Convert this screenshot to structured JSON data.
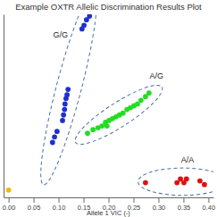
{
  "chart_data": {
    "type": "scatter",
    "title": "Example OXTR Allelic Discrimination Results Plot",
    "x_label": "Allele 1 VIC (-)",
    "xlim": [
      -0.01,
      0.41
    ],
    "xticks": [
      {
        "value": 0,
        "label": "0.00"
      },
      {
        "value": 0.05,
        "label": "0.05"
      },
      {
        "value": 0.1,
        "label": "0.10"
      },
      {
        "value": 0.15,
        "label": "0.15"
      },
      {
        "value": 0.2,
        "label": "0.20"
      },
      {
        "value": 0.25,
        "label": "0.25"
      },
      {
        "value": 0.3,
        "label": "0.30"
      },
      {
        "value": 0.35,
        "label": "0.35"
      },
      {
        "value": 0.4,
        "label": "0.40"
      }
    ],
    "ylim": [
      0,
      1
    ],
    "tick_labels": "x",
    "grid": false,
    "marker": "circle",
    "series": [
      {
        "color": "#1f2fd0",
        "x": [
          0.162,
          0.156,
          0.151,
          0.147,
          0.119,
          0.117,
          0.115,
          0.113,
          0.112,
          0.11,
          0.108,
          0.097,
          0.092,
          0.088
        ],
        "values": [
          0.99,
          0.97,
          0.94,
          0.92,
          0.59,
          0.56,
          0.54,
          0.51,
          0.48,
          0.45,
          0.42,
          0.36,
          0.33,
          0.3
        ]
      },
      {
        "color": "#22dd22",
        "x": [
          0.158,
          0.169,
          0.179,
          0.187,
          0.194,
          0.201,
          0.208,
          0.215,
          0.222,
          0.229,
          0.237,
          0.244,
          0.251,
          0.258,
          0.265,
          0.274,
          0.281,
          0.197
        ],
        "values": [
          0.35,
          0.37,
          0.38,
          0.39,
          0.41,
          0.42,
          0.43,
          0.44,
          0.45,
          0.46,
          0.48,
          0.49,
          0.5,
          0.51,
          0.53,
          0.55,
          0.57,
          0.39
        ]
      },
      {
        "color": "#e01010",
        "x": [
          0.274,
          0.337,
          0.344,
          0.351,
          0.356,
          0.383,
          0.392
        ],
        "values": [
          0.08,
          0.08,
          0.1,
          0.08,
          0.1,
          0.09,
          0.07
        ]
      },
      {
        "color": "#f5b800",
        "x": [
          0.0
        ],
        "values": [
          0.04
        ]
      }
    ],
    "annotations": [
      {
        "text": "G/G",
        "x": 0.104,
        "y": 0.875
      },
      {
        "text": "A/G",
        "x": 0.296,
        "y": 0.65
      },
      {
        "text": "A/A",
        "x": 0.358,
        "y": 0.19
      }
    ]
  }
}
